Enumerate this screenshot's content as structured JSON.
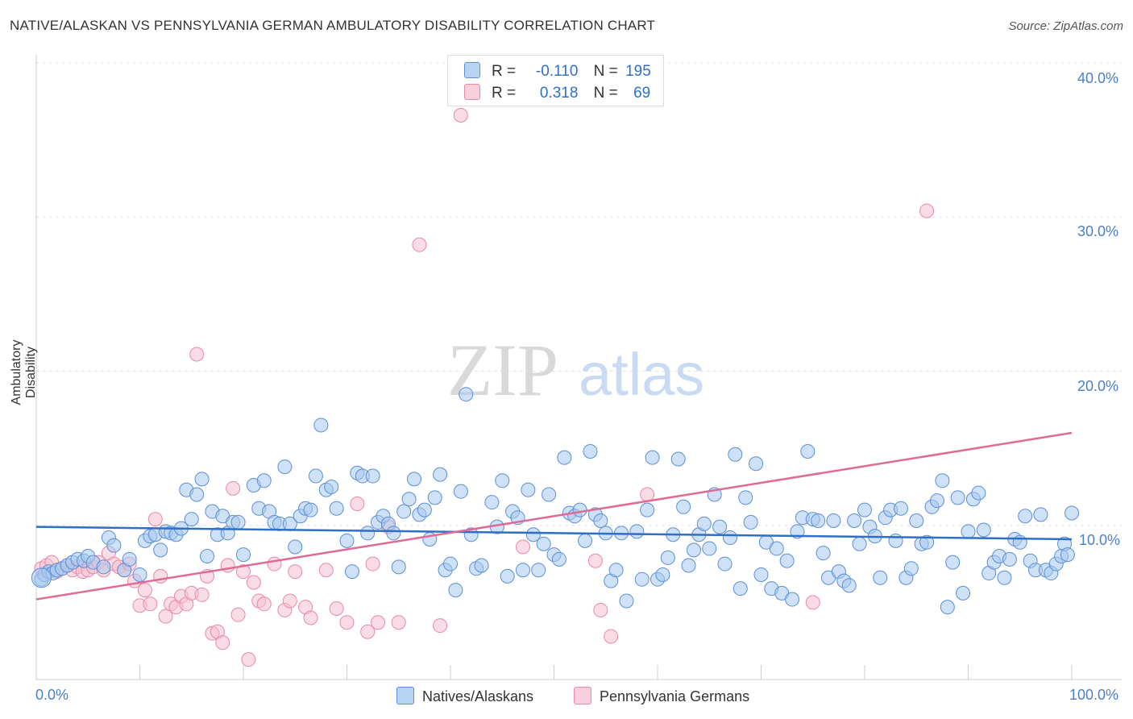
{
  "header": {
    "title": "NATIVE/ALASKAN VS PENNSYLVANIA GERMAN AMBULATORY DISABILITY CORRELATION CHART",
    "source": "Source: ZipAtlas.com"
  },
  "watermark": {
    "part1": "ZIP",
    "part2": "atlas"
  },
  "legend": {
    "r_label": "R =",
    "n_label": "N =",
    "series1": {
      "r": "-0.110",
      "n": "195"
    },
    "series2": {
      "r": "0.318",
      "n": "69"
    }
  },
  "colors": {
    "blue_fill": "#a8c8ee",
    "blue_stroke": "#5b8fd6",
    "blue_line": "#2f6fc6",
    "pink_fill": "#f6bfd0",
    "pink_stroke": "#e889a8",
    "pink_line": "#e06a95",
    "tick_text": "#4a7fc6"
  },
  "chart_data": {
    "type": "scatter",
    "title": "NATIVE/ALASKAN VS PENNSYLVANIA GERMAN AMBULATORY DISABILITY CORRELATION CHART",
    "xlabel": "",
    "ylabel": "Ambulatory Disability",
    "xlim": [
      0,
      100
    ],
    "ylim": [
      0,
      40
    ],
    "y_ticks": [
      "10.0%",
      "20.0%",
      "30.0%",
      "40.0%"
    ],
    "x_ticks": [
      "0.0%",
      "100.0%"
    ],
    "legend_position": "top-center",
    "series": [
      {
        "name": "Natives/Alaskans",
        "r": -0.11,
        "n": 195,
        "trend": {
          "x": [
            0,
            100
          ],
          "y": [
            9.9,
            9.1
          ]
        },
        "points": [
          [
            0.5,
            6.5
          ],
          [
            0.8,
            6.8
          ],
          [
            1.2,
            7.0
          ],
          [
            1.6,
            6.9
          ],
          [
            2.0,
            7.1
          ],
          [
            2.5,
            7.2
          ],
          [
            3.0,
            7.4
          ],
          [
            3.5,
            7.6
          ],
          [
            4.0,
            7.8
          ],
          [
            4.6,
            7.7
          ],
          [
            5.0,
            8.0
          ],
          [
            5.5,
            7.6
          ],
          [
            6.5,
            7.3
          ],
          [
            7.0,
            9.2
          ],
          [
            7.5,
            8.7
          ],
          [
            8.5,
            7.1
          ],
          [
            9.0,
            7.8
          ],
          [
            10.0,
            6.8
          ],
          [
            10.5,
            9.0
          ],
          [
            11.0,
            9.3
          ],
          [
            11.5,
            9.4
          ],
          [
            12.0,
            8.4
          ],
          [
            12.5,
            9.6
          ],
          [
            13.0,
            9.5
          ],
          [
            13.5,
            9.4
          ],
          [
            14.0,
            9.8
          ],
          [
            14.5,
            12.3
          ],
          [
            15.0,
            10.4
          ],
          [
            15.5,
            12.0
          ],
          [
            16.0,
            13.0
          ],
          [
            16.5,
            8.0
          ],
          [
            17.0,
            10.9
          ],
          [
            17.5,
            9.4
          ],
          [
            18.0,
            10.6
          ],
          [
            18.5,
            9.5
          ],
          [
            19.0,
            10.2
          ],
          [
            19.5,
            10.2
          ],
          [
            20.0,
            8.1
          ],
          [
            21.0,
            12.6
          ],
          [
            21.5,
            11.1
          ],
          [
            22.0,
            12.9
          ],
          [
            22.5,
            10.9
          ],
          [
            23.0,
            10.2
          ],
          [
            23.5,
            10.1
          ],
          [
            24.0,
            13.8
          ],
          [
            24.5,
            10.1
          ],
          [
            25.0,
            8.6
          ],
          [
            25.5,
            10.6
          ],
          [
            26.0,
            11.1
          ],
          [
            26.5,
            11.0
          ],
          [
            27.0,
            13.2
          ],
          [
            27.5,
            16.5
          ],
          [
            28.0,
            12.3
          ],
          [
            28.5,
            12.5
          ],
          [
            29.0,
            11.1
          ],
          [
            30.0,
            9.0
          ],
          [
            30.5,
            7.0
          ],
          [
            31.0,
            13.4
          ],
          [
            31.5,
            13.2
          ],
          [
            32.0,
            9.5
          ],
          [
            32.5,
            13.2
          ],
          [
            33.0,
            10.2
          ],
          [
            33.5,
            10.6
          ],
          [
            34.0,
            10.1
          ],
          [
            34.5,
            9.5
          ],
          [
            35.0,
            7.3
          ],
          [
            35.5,
            10.9
          ],
          [
            36.0,
            11.7
          ],
          [
            36.5,
            13.0
          ],
          [
            37.0,
            10.7
          ],
          [
            37.5,
            11.0
          ],
          [
            38.0,
            9.1
          ],
          [
            38.5,
            11.8
          ],
          [
            39.0,
            13.3
          ],
          [
            39.5,
            7.1
          ],
          [
            40.0,
            7.5
          ],
          [
            40.5,
            5.8
          ],
          [
            41.0,
            12.2
          ],
          [
            41.5,
            18.5
          ],
          [
            42.0,
            9.4
          ],
          [
            42.5,
            7.2
          ],
          [
            43.0,
            7.4
          ],
          [
            44.0,
            11.5
          ],
          [
            44.5,
            9.9
          ],
          [
            45.0,
            12.9
          ],
          [
            45.5,
            6.7
          ],
          [
            46.0,
            10.9
          ],
          [
            46.5,
            10.5
          ],
          [
            47.0,
            7.1
          ],
          [
            47.5,
            12.3
          ],
          [
            48.0,
            9.4
          ],
          [
            48.5,
            7.1
          ],
          [
            49.0,
            8.8
          ],
          [
            49.5,
            12.0
          ],
          [
            50.0,
            8.1
          ],
          [
            50.5,
            7.8
          ],
          [
            51.0,
            14.4
          ],
          [
            51.5,
            10.8
          ],
          [
            52.0,
            10.6
          ],
          [
            52.5,
            11.0
          ],
          [
            53.0,
            9.0
          ],
          [
            53.5,
            14.8
          ],
          [
            54.0,
            10.7
          ],
          [
            54.5,
            10.3
          ],
          [
            55.0,
            9.5
          ],
          [
            55.5,
            6.4
          ],
          [
            56.0,
            7.1
          ],
          [
            56.5,
            9.5
          ],
          [
            57.0,
            5.1
          ],
          [
            58.0,
            9.6
          ],
          [
            58.5,
            6.5
          ],
          [
            59.0,
            11.0
          ],
          [
            59.5,
            14.4
          ],
          [
            60.0,
            6.5
          ],
          [
            60.5,
            6.8
          ],
          [
            61.0,
            7.9
          ],
          [
            61.5,
            9.4
          ],
          [
            62.0,
            14.3
          ],
          [
            62.5,
            11.2
          ],
          [
            63.0,
            7.4
          ],
          [
            63.5,
            8.4
          ],
          [
            64.0,
            9.4
          ],
          [
            64.5,
            10.1
          ],
          [
            65.0,
            8.5
          ],
          [
            65.5,
            12.0
          ],
          [
            66.0,
            9.9
          ],
          [
            66.5,
            7.5
          ],
          [
            67.0,
            9.2
          ],
          [
            67.5,
            14.6
          ],
          [
            68.0,
            5.9
          ],
          [
            68.5,
            11.8
          ],
          [
            69.0,
            10.2
          ],
          [
            69.5,
            14.0
          ],
          [
            70.0,
            6.8
          ],
          [
            70.5,
            8.9
          ],
          [
            71.0,
            5.9
          ],
          [
            71.5,
            8.5
          ],
          [
            72.0,
            5.6
          ],
          [
            72.5,
            7.7
          ],
          [
            73.0,
            5.2
          ],
          [
            73.5,
            9.6
          ],
          [
            74.0,
            10.5
          ],
          [
            74.5,
            14.8
          ],
          [
            75.0,
            10.4
          ],
          [
            75.5,
            10.3
          ],
          [
            76.0,
            8.2
          ],
          [
            76.5,
            6.6
          ],
          [
            77.0,
            10.3
          ],
          [
            77.5,
            7.0
          ],
          [
            78.0,
            6.4
          ],
          [
            78.5,
            6.1
          ],
          [
            79.0,
            10.3
          ],
          [
            79.5,
            8.8
          ],
          [
            80.0,
            11.0
          ],
          [
            80.5,
            9.9
          ],
          [
            81.0,
            9.3
          ],
          [
            81.5,
            6.6
          ],
          [
            82.0,
            10.5
          ],
          [
            82.5,
            11.0
          ],
          [
            83.0,
            9.0
          ],
          [
            83.5,
            11.1
          ],
          [
            84.0,
            6.6
          ],
          [
            84.5,
            7.2
          ],
          [
            85.0,
            10.3
          ],
          [
            85.5,
            8.8
          ],
          [
            86.0,
            8.9
          ],
          [
            86.5,
            11.2
          ],
          [
            87.0,
            11.6
          ],
          [
            87.5,
            12.9
          ],
          [
            88.0,
            4.7
          ],
          [
            88.5,
            7.6
          ],
          [
            89.0,
            11.8
          ],
          [
            89.5,
            5.6
          ],
          [
            90.0,
            9.6
          ],
          [
            90.5,
            11.7
          ],
          [
            91.0,
            12.1
          ],
          [
            91.5,
            9.7
          ],
          [
            92.0,
            6.9
          ],
          [
            92.5,
            7.6
          ],
          [
            93.0,
            8.0
          ],
          [
            93.5,
            6.6
          ],
          [
            94.0,
            7.8
          ],
          [
            94.5,
            9.1
          ],
          [
            95.0,
            8.9
          ],
          [
            95.5,
            10.6
          ],
          [
            96.0,
            7.7
          ],
          [
            96.5,
            7.1
          ],
          [
            97.0,
            10.7
          ],
          [
            97.5,
            7.1
          ],
          [
            98.0,
            6.9
          ],
          [
            98.5,
            7.5
          ],
          [
            99.0,
            8.0
          ],
          [
            99.3,
            8.8
          ],
          [
            99.6,
            8.1
          ],
          [
            100.0,
            10.8
          ]
        ]
      },
      {
        "name": "Pennsylvania Germans",
        "r": 0.318,
        "n": 69,
        "trend": {
          "x": [
            0,
            100
          ],
          "y": [
            5.2,
            16.0
          ]
        },
        "points": [
          [
            0.5,
            7.2
          ],
          [
            1.0,
            7.4
          ],
          [
            1.5,
            7.6
          ],
          [
            2.0,
            7.0
          ],
          [
            2.5,
            7.2
          ],
          [
            3.0,
            7.4
          ],
          [
            3.5,
            7.1
          ],
          [
            4.0,
            7.3
          ],
          [
            4.5,
            7.0
          ],
          [
            5.0,
            7.1
          ],
          [
            5.5,
            7.3
          ],
          [
            6.0,
            7.6
          ],
          [
            6.5,
            7.1
          ],
          [
            7.0,
            8.2
          ],
          [
            7.5,
            7.5
          ],
          [
            8.0,
            7.3
          ],
          [
            8.5,
            7.1
          ],
          [
            9.0,
            7.5
          ],
          [
            9.5,
            6.4
          ],
          [
            10.0,
            4.8
          ],
          [
            10.5,
            5.8
          ],
          [
            11.0,
            4.9
          ],
          [
            11.5,
            10.4
          ],
          [
            12.0,
            6.7
          ],
          [
            12.5,
            4.1
          ],
          [
            13.0,
            4.9
          ],
          [
            13.5,
            4.7
          ],
          [
            14.0,
            5.4
          ],
          [
            14.5,
            4.9
          ],
          [
            15.0,
            5.6
          ],
          [
            15.5,
            21.1
          ],
          [
            16.0,
            5.5
          ],
          [
            16.5,
            6.7
          ],
          [
            17.0,
            3.0
          ],
          [
            17.5,
            3.1
          ],
          [
            18.0,
            2.4
          ],
          [
            18.5,
            7.4
          ],
          [
            19.0,
            12.4
          ],
          [
            19.5,
            4.2
          ],
          [
            20.0,
            7.0
          ],
          [
            20.5,
            1.3
          ],
          [
            21.0,
            6.3
          ],
          [
            21.5,
            5.1
          ],
          [
            22.0,
            4.9
          ],
          [
            23.0,
            7.5
          ],
          [
            24.0,
            4.5
          ],
          [
            24.5,
            5.1
          ],
          [
            25.0,
            7.0
          ],
          [
            26.0,
            4.7
          ],
          [
            26.5,
            4.0
          ],
          [
            28.0,
            7.1
          ],
          [
            29.0,
            4.6
          ],
          [
            30.0,
            3.7
          ],
          [
            31.0,
            11.4
          ],
          [
            32.0,
            3.1
          ],
          [
            32.5,
            7.5
          ],
          [
            33.0,
            3.7
          ],
          [
            34.0,
            9.9
          ],
          [
            35.0,
            3.7
          ],
          [
            37.0,
            28.2
          ],
          [
            39.0,
            3.5
          ],
          [
            41.0,
            36.6
          ],
          [
            47.0,
            8.6
          ],
          [
            54.0,
            7.7
          ],
          [
            54.5,
            4.5
          ],
          [
            55.5,
            2.8
          ],
          [
            59.0,
            12.0
          ],
          [
            75.0,
            5.0
          ],
          [
            86.0,
            30.4
          ]
        ]
      }
    ]
  },
  "bottom_legend": {
    "series1": "Natives/Alaskans",
    "series2": "Pennsylvania Germans"
  }
}
